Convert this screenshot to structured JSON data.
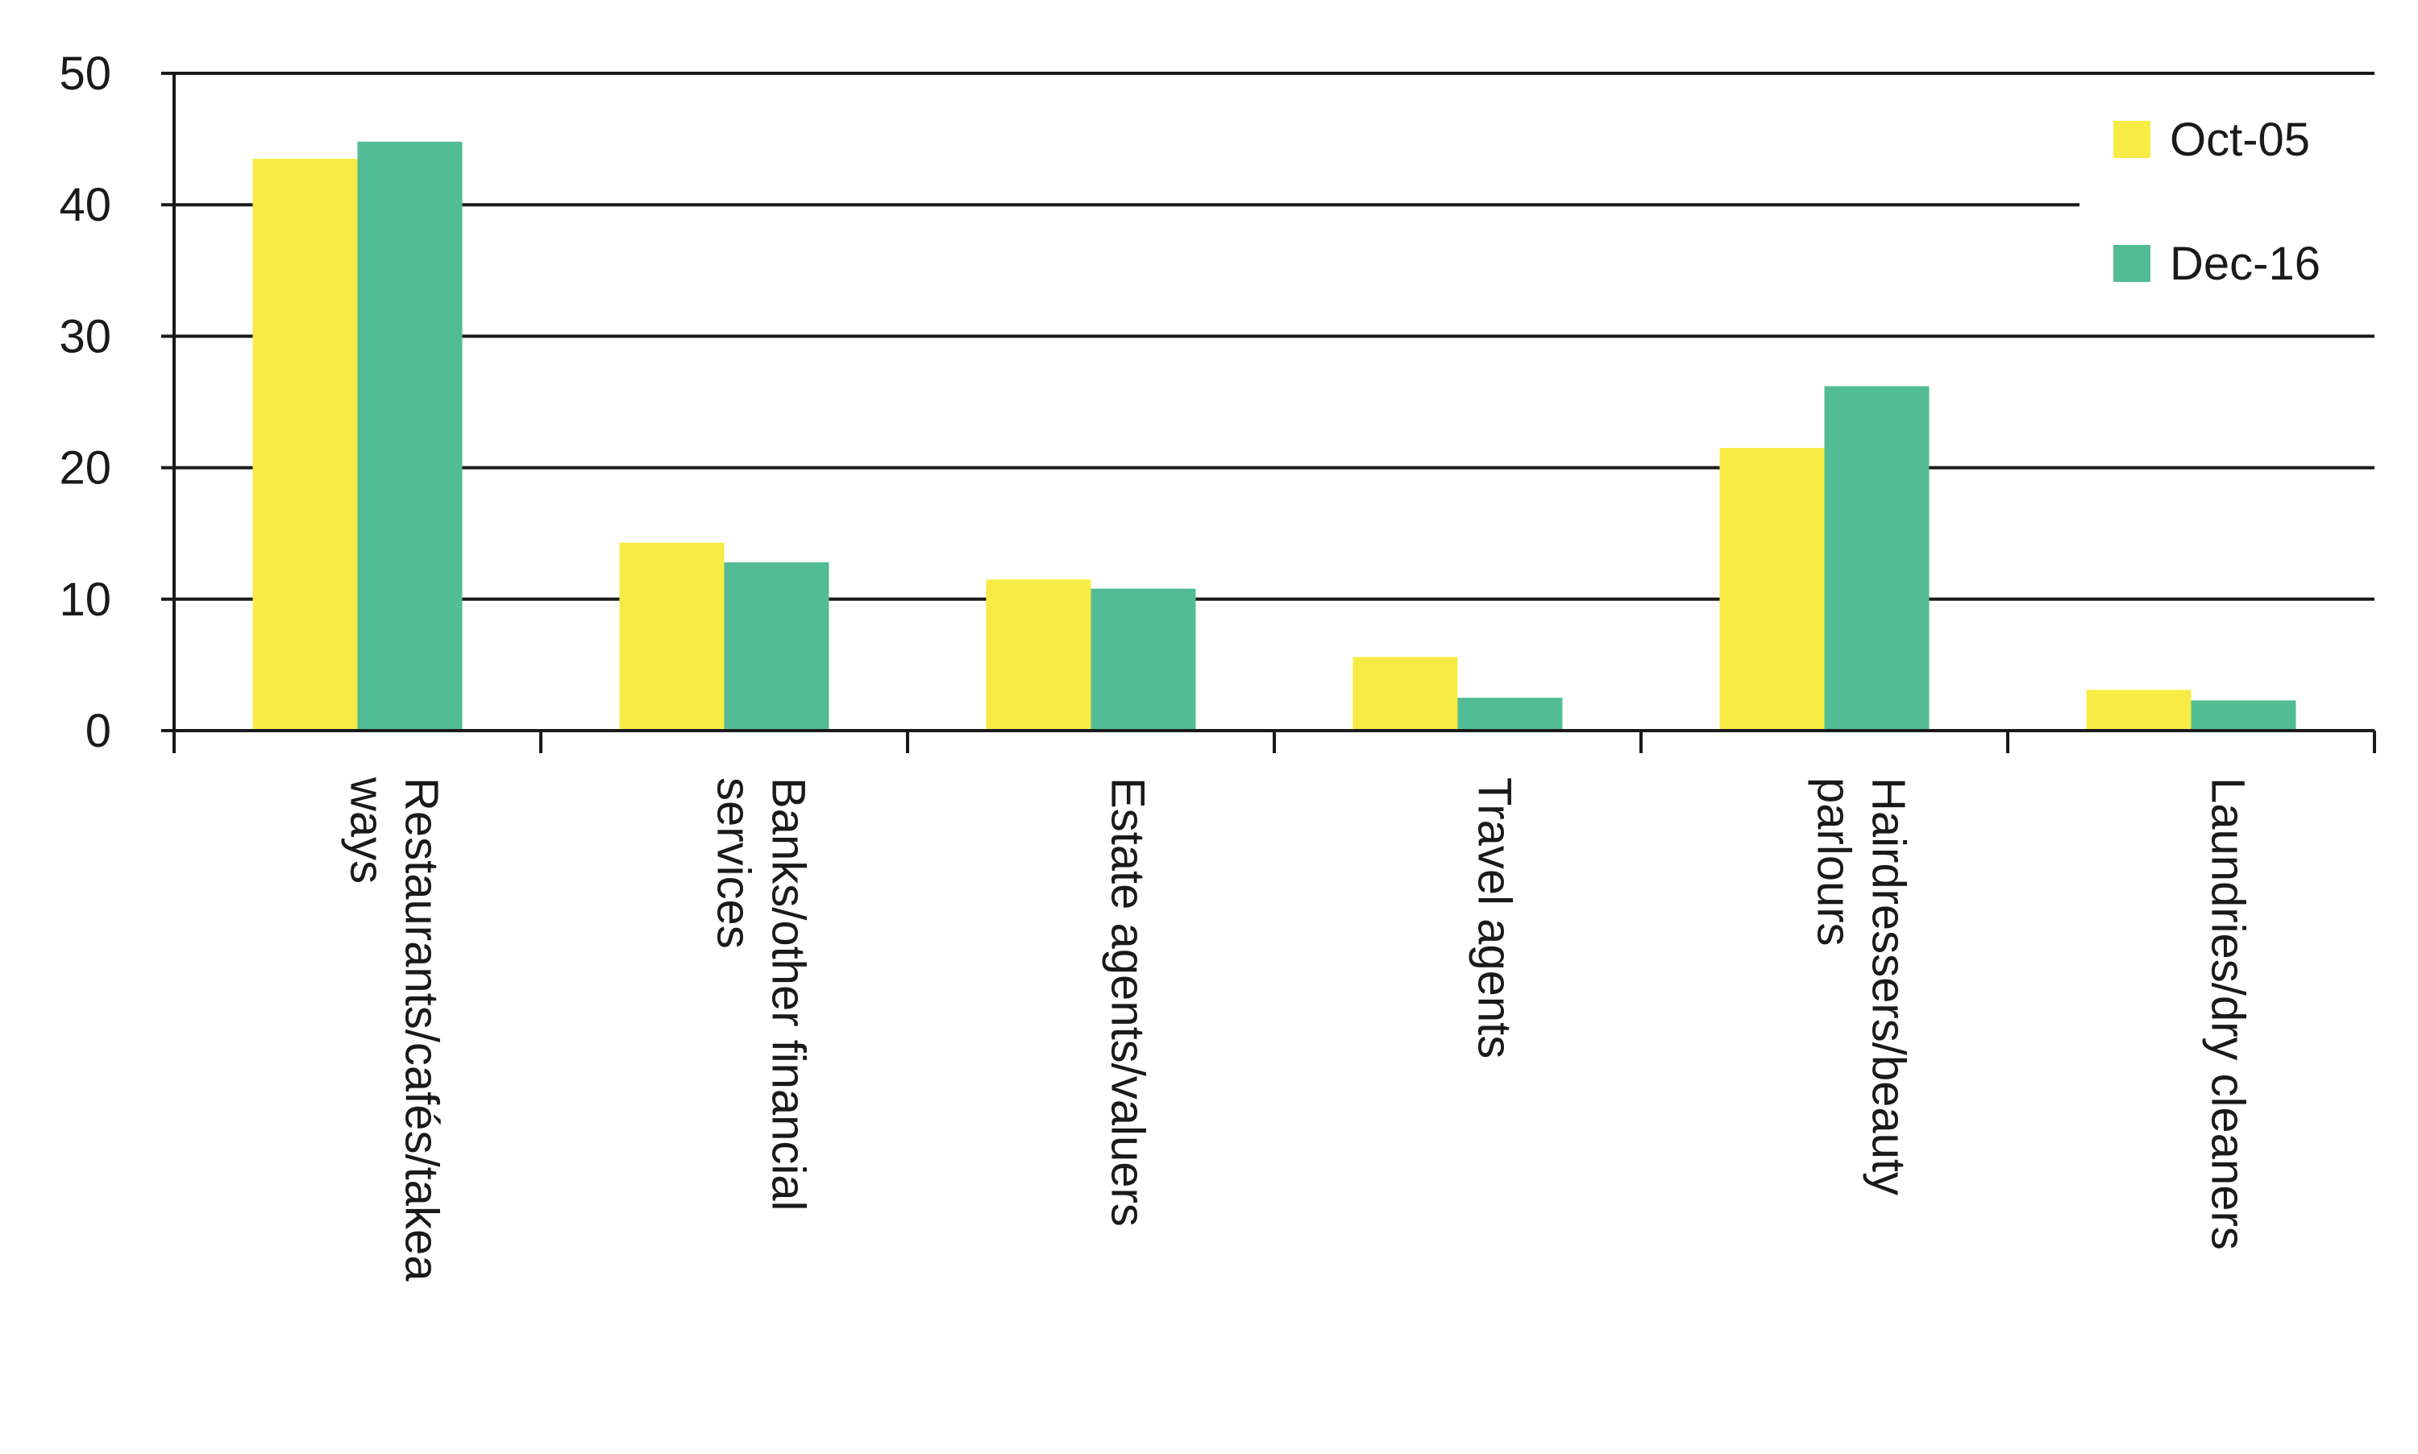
{
  "chart_data": {
    "type": "bar",
    "title": "",
    "xlabel": "",
    "ylabel": "",
    "categories": [
      [
        "Restaurants/cafés/takea",
        "ways"
      ],
      [
        "Banks/other financial",
        "services"
      ],
      [
        "Estate agents/valuers"
      ],
      [
        "Travel agents"
      ],
      [
        "Hairdressers/beauty",
        "parlours"
      ],
      [
        "Laundries/dry cleaners"
      ]
    ],
    "series": [
      {
        "name": "Oct-05",
        "color": "#f7eb45",
        "values": [
          43.5,
          14.3,
          11.5,
          5.6,
          21.5,
          3.1
        ]
      },
      {
        "name": "Dec-16",
        "color": "#52bd94",
        "values": [
          44.8,
          12.8,
          10.8,
          2.5,
          26.2,
          2.3
        ]
      }
    ],
    "ylim": [
      0,
      50
    ],
    "yticks": [
      0,
      10,
      20,
      30,
      40,
      50
    ],
    "grid": true,
    "legend_position": "top-right"
  }
}
